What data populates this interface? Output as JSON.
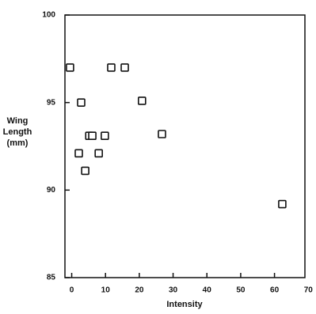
{
  "chart_data": {
    "type": "scatter",
    "xlabel": "Intensity",
    "ylabel": [
      "Wing",
      "Length",
      "(mm)"
    ],
    "x": [
      -0.5,
      2.8,
      11.7,
      15.7,
      20.8,
      2.1,
      4.0,
      5.2,
      6.1,
      9.8,
      8.0,
      26.7,
      62.3
    ],
    "y": [
      97.0,
      95.0,
      97.0,
      97.0,
      95.1,
      92.1,
      91.1,
      93.1,
      93.1,
      93.1,
      92.1,
      93.2,
      89.2
    ],
    "color": "#111111",
    "xlim": [
      -2,
      69
    ],
    "ylim": [
      85,
      100
    ],
    "xticks": [
      0,
      10,
      20,
      30,
      40,
      50,
      60,
      70
    ],
    "yticks": [
      85,
      90,
      95,
      100
    ]
  }
}
